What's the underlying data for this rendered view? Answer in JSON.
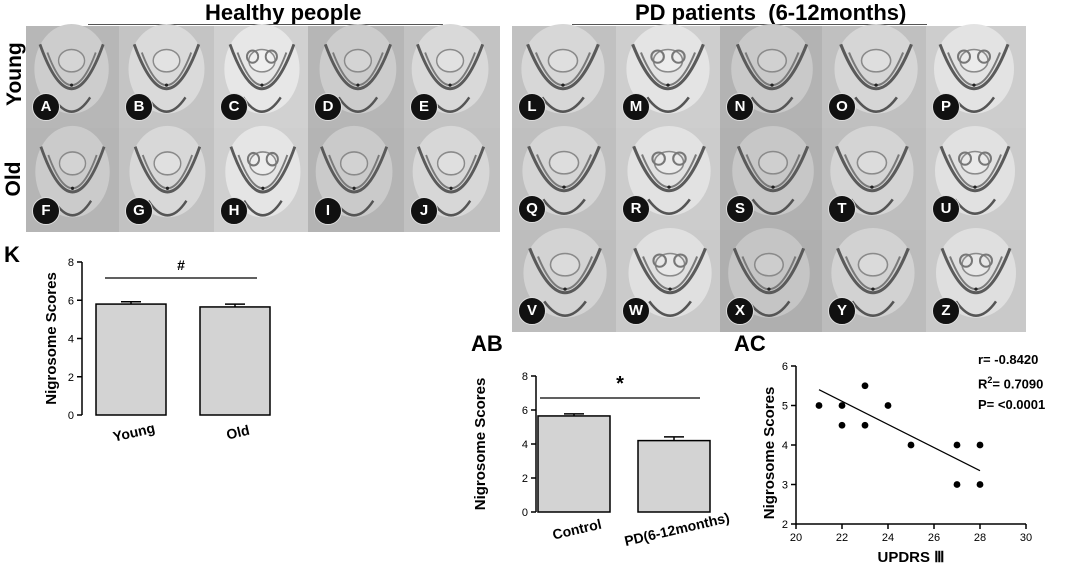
{
  "headings": {
    "healthy": "Healthy people",
    "pd": "PD patients  (6-12months)",
    "young": "Young",
    "old": "Old"
  },
  "panels": {
    "healthy_young": [
      "A",
      "B",
      "C",
      "D",
      "E"
    ],
    "healthy_old": [
      "F",
      "G",
      "H",
      "I",
      "J"
    ],
    "pd_row1": [
      "L",
      "M",
      "N",
      "O",
      "P"
    ],
    "pd_row2": [
      "Q",
      "R",
      "S",
      "T",
      "U"
    ],
    "pd_row3": [
      "V",
      "W",
      "X",
      "Y",
      "Z"
    ]
  },
  "panel_letters": {
    "k": "K",
    "ab": "AB",
    "ac": "AC"
  },
  "stats": {
    "r": "r= -0.8420",
    "r2_prefix": "R",
    "r2_sup": "2",
    "r2_value": "= 0.7090",
    "p": "P= <0.0001"
  },
  "chart_data": [
    {
      "id": "K",
      "type": "bar",
      "categories": [
        "Young",
        "Old"
      ],
      "values": [
        5.8,
        5.65
      ],
      "errors": [
        0.12,
        0.15
      ],
      "ylabel": "Nigrosome Scores",
      "ylim": [
        0,
        8
      ],
      "yticks": [
        "0",
        "2",
        "4",
        "6",
        "8"
      ],
      "significance": "#",
      "bar_color": "#d3d3d3"
    },
    {
      "id": "AB",
      "type": "bar",
      "categories": [
        "Control",
        "PD(6-12months)"
      ],
      "values": [
        5.65,
        4.2
      ],
      "errors": [
        0.12,
        0.22
      ],
      "ylabel": "Nigrosome Scores",
      "ylim": [
        0,
        8
      ],
      "yticks": [
        "0",
        "2",
        "4",
        "6",
        "8"
      ],
      "significance": "*",
      "bar_color": "#d3d3d3"
    },
    {
      "id": "AC",
      "type": "scatter",
      "x": [
        21,
        22,
        22,
        23,
        23,
        24,
        25,
        27,
        27,
        28,
        28
      ],
      "y": [
        5,
        5,
        4.5,
        5.5,
        4.5,
        5,
        4,
        4,
        3,
        4,
        3
      ],
      "fit_line": {
        "x": [
          21,
          28
        ],
        "y": [
          5.4,
          3.35
        ]
      },
      "xlabel": "UPDRS Ⅲ",
      "ylabel": "Nigrosome Scores",
      "xlim": [
        20,
        30
      ],
      "ylim": [
        2,
        6
      ],
      "xticks": [
        "20",
        "22",
        "24",
        "26",
        "28",
        "30"
      ],
      "yticks": [
        "2",
        "3",
        "4",
        "5",
        "6"
      ]
    }
  ]
}
